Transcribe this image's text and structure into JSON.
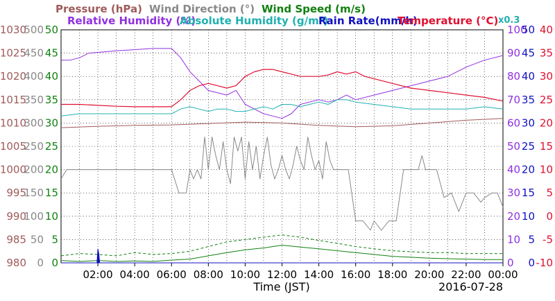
{
  "chart_data": {
    "type": "line",
    "legend": {
      "row1": [
        {
          "key": "pressure",
          "label": "Pressure (hPa)",
          "color": "#a05a5a"
        },
        {
          "key": "wind_dir",
          "label": "Wind Direction (°)",
          "color": "#888888"
        },
        {
          "key": "wind_speed",
          "label": "Wind Speed (m/s)",
          "color": "#108010"
        }
      ],
      "row2": [
        {
          "key": "rh",
          "label": "Relative Humidity (%)",
          "color": "#9030e0"
        },
        {
          "key": "ah",
          "label": "Absolute Humidity (g/m³)",
          "color": "#20b0b0"
        },
        {
          "key": "rain",
          "label": "Rain Rate(mm/h)",
          "color": "#1010c0"
        },
        {
          "key": "temp",
          "label": "Temperature (°C)",
          "color": "#e01030"
        }
      ],
      "ah_scale_note": "x0.3"
    },
    "x_axis": {
      "label": "Time (JST)",
      "date": "2016-07-28",
      "ticks": [
        "02:00",
        "04:00",
        "06:00",
        "08:00",
        "10:00",
        "12:00",
        "14:00",
        "16:00",
        "18:00",
        "20:00",
        "22:00",
        "00:00"
      ],
      "range_hours": [
        0,
        24
      ]
    },
    "y_axes": {
      "pressure": {
        "ticks": [
          980,
          985,
          990,
          995,
          1000,
          1005,
          1010,
          1015,
          1020,
          1025,
          1030
        ],
        "range": [
          980,
          1030
        ],
        "color": "#a05a5a"
      },
      "wind_dir": {
        "ticks": [
          0,
          50,
          100,
          150,
          200,
          250,
          300,
          350,
          400,
          450,
          500
        ],
        "range": [
          0,
          500
        ],
        "color": "#888888"
      },
      "wind_speed": {
        "ticks": [
          0,
          5,
          10,
          15,
          20,
          25,
          30,
          35,
          40,
          45,
          50
        ],
        "range": [
          0,
          50
        ],
        "color": "#108010"
      },
      "rh": {
        "ticks": [
          0,
          10,
          20,
          30,
          40,
          50,
          60,
          70,
          80,
          90,
          100
        ],
        "range": [
          0,
          100
        ],
        "color": "#9030e0"
      },
      "rain": {
        "ticks": [
          0,
          5,
          10,
          15,
          20,
          25,
          30,
          35,
          40,
          45,
          50
        ],
        "range": [
          0,
          50
        ],
        "color": "#1010c0"
      },
      "temp": {
        "ticks": [
          -10,
          -5,
          0,
          5,
          10,
          15,
          20,
          25,
          30,
          35,
          40
        ],
        "range": [
          -10,
          40
        ],
        "color": "#e01030"
      }
    },
    "grid": true,
    "series": [
      {
        "key": "pressure",
        "name": "Pressure (hPa)",
        "axis": "pressure",
        "x": [
          0,
          2,
          4,
          6,
          8,
          10,
          12,
          14,
          16,
          18,
          20,
          22,
          24
        ],
        "y": [
          1009.0,
          1009.3,
          1009.5,
          1009.6,
          1009.9,
          1010.2,
          1010.0,
          1009.5,
          1009.2,
          1009.4,
          1010.0,
          1010.6,
          1011.0
        ]
      },
      {
        "key": "wind_dir",
        "name": "Wind Direction (°)",
        "axis": "wind_dir",
        "x": [
          0,
          0.3,
          0.6,
          5.8,
          6.0,
          6.4,
          6.8,
          7.0,
          7.2,
          7.4,
          7.6,
          7.8,
          8.0,
          8.2,
          8.4,
          8.6,
          8.8,
          9.0,
          9.2,
          9.4,
          9.6,
          9.8,
          10.0,
          10.2,
          10.4,
          10.6,
          10.8,
          11.0,
          11.2,
          11.4,
          11.6,
          11.8,
          12.0,
          12.2,
          12.4,
          12.6,
          12.8,
          13.0,
          13.2,
          13.4,
          13.6,
          13.8,
          14.0,
          14.2,
          14.4,
          14.6,
          14.8,
          15.0,
          15.2,
          15.4,
          15.6,
          16.0,
          16.4,
          16.8,
          17.0,
          17.4,
          17.8,
          18.2,
          18.6,
          19.0,
          19.4,
          19.6,
          19.8,
          20.0,
          20.4,
          20.8,
          21.2,
          21.6,
          22.0,
          22.4,
          22.8,
          23.0,
          23.4,
          23.7,
          24.0
        ],
        "y": [
          180,
          200,
          200,
          200,
          200,
          150,
          150,
          200,
          180,
          200,
          180,
          270,
          200,
          270,
          230,
          200,
          260,
          200,
          170,
          270,
          240,
          270,
          180,
          260,
          200,
          250,
          180,
          230,
          270,
          210,
          180,
          200,
          230,
          200,
          180,
          210,
          250,
          220,
          200,
          270,
          230,
          200,
          220,
          180,
          260,
          220,
          200,
          200,
          200,
          200,
          200,
          90,
          90,
          70,
          90,
          70,
          90,
          90,
          200,
          200,
          200,
          230,
          200,
          200,
          200,
          140,
          150,
          110,
          150,
          150,
          130,
          140,
          150,
          150,
          120
        ]
      },
      {
        "key": "wind_speed",
        "name": "Wind Speed (m/s)",
        "axis": "wind_speed",
        "x": [
          0,
          1,
          2,
          3,
          4,
          5,
          6,
          7,
          8,
          9,
          10,
          11,
          12,
          13,
          14,
          15,
          16,
          17,
          18,
          19,
          20,
          21,
          22,
          23,
          24
        ],
        "y": [
          0.5,
          0.3,
          0.5,
          0.3,
          0.4,
          0.3,
          0.6,
          0.8,
          1.5,
          2.2,
          2.8,
          3.2,
          3.8,
          3.4,
          3.0,
          2.6,
          2.2,
          1.8,
          1.4,
          1.2,
          1.0,
          0.9,
          0.8,
          0.7,
          0.7
        ]
      },
      {
        "key": "wind_gust",
        "name": "Wind Speed (m/s)",
        "axis": "wind_speed",
        "dashed": true,
        "x": [
          0,
          1,
          2,
          3,
          4,
          5,
          6,
          7,
          8,
          9,
          10,
          11,
          12,
          13,
          14,
          15,
          16,
          17,
          18,
          19,
          20,
          21,
          22,
          23,
          24
        ],
        "y": [
          1.5,
          2.0,
          1.8,
          1.5,
          2.2,
          1.8,
          2.0,
          2.5,
          3.5,
          4.5,
          5.0,
          5.5,
          6.0,
          5.5,
          4.8,
          4.2,
          3.5,
          3.0,
          2.6,
          2.4,
          2.2,
          2.2,
          2.0,
          2.0,
          2.0
        ]
      },
      {
        "key": "rh",
        "name": "Relative Humidity (%)",
        "axis": "rh",
        "x": [
          0,
          0.5,
          1.0,
          1.5,
          3.0,
          5.0,
          6.0,
          6.5,
          7.0,
          7.5,
          8.0,
          9.0,
          9.5,
          10.0,
          10.5,
          11.0,
          11.5,
          12.0,
          12.5,
          13.0,
          14.0,
          14.5,
          15.0,
          15.5,
          16.0,
          17.0,
          18.0,
          19.0,
          20.0,
          21.0,
          22.0,
          23.0,
          24.0
        ],
        "y": [
          87,
          87,
          88,
          90,
          91,
          92,
          92,
          88,
          82,
          78,
          74,
          72,
          74,
          68,
          66,
          64,
          63,
          62,
          64,
          68,
          70,
          69,
          70,
          72,
          70,
          72,
          74,
          76,
          78,
          80,
          84,
          87,
          89
        ]
      },
      {
        "key": "ah",
        "name": "Absolute Humidity (g/m³)",
        "axis": "rh",
        "x": [
          0,
          1,
          2,
          3,
          4,
          5,
          6,
          6.5,
          7,
          7.5,
          8,
          8.5,
          9,
          9.5,
          10,
          10.5,
          11,
          11.5,
          12,
          12.5,
          13,
          13.5,
          14,
          14.5,
          15,
          15.5,
          16,
          17,
          18,
          19,
          20,
          21,
          22,
          23,
          24
        ],
        "y": [
          63,
          64,
          64,
          64,
          64,
          64,
          64,
          66,
          67,
          66,
          65,
          66,
          66,
          65,
          65,
          66,
          67,
          66,
          68,
          68,
          67,
          68,
          69,
          68,
          70,
          70,
          69,
          68,
          67,
          66,
          66,
          66,
          66,
          67,
          66
        ]
      },
      {
        "key": "rain",
        "name": "Rain Rate(mm/h)",
        "axis": "rain",
        "x": [
          0,
          1.95,
          2.0,
          2.05,
          2.1,
          24
        ],
        "y": [
          0,
          0,
          3,
          2,
          0,
          0
        ]
      },
      {
        "key": "temp",
        "name": "Temperature (°C)",
        "axis": "temp",
        "x": [
          0,
          1,
          2,
          3,
          4,
          5,
          6,
          6.5,
          7,
          7.5,
          8,
          8.5,
          9,
          9.5,
          10,
          10.5,
          11,
          11.5,
          12,
          12.5,
          13,
          13.5,
          14,
          14.5,
          15,
          15.5,
          16,
          16.5,
          17,
          18,
          19,
          20,
          21,
          22,
          23,
          24
        ],
        "y": [
          24,
          24,
          23.8,
          23.6,
          23.5,
          23.5,
          23.5,
          25,
          27,
          28,
          28.5,
          28,
          27.5,
          28,
          30,
          31,
          31.5,
          31.5,
          31,
          30.5,
          30,
          30,
          30,
          30.3,
          31,
          30.5,
          31,
          30,
          29.5,
          28.5,
          27.5,
          27,
          26.5,
          26,
          25.5,
          24.7
        ]
      }
    ]
  }
}
